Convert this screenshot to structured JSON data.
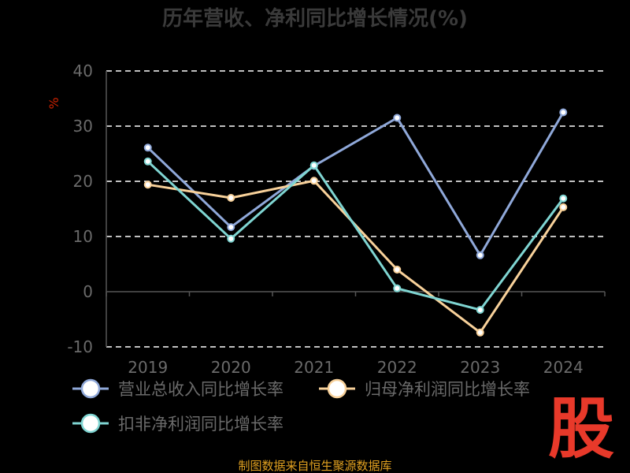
{
  "chart_data": {
    "type": "line",
    "title": "历年营收、净利同比增长情况(%)",
    "ylabel": "%",
    "xlabel": "",
    "categories": [
      "2019",
      "2020",
      "2021",
      "2022",
      "2023",
      "2024"
    ],
    "ylim": [
      -10,
      40
    ],
    "yticks": [
      40,
      30,
      20,
      10,
      0,
      -10
    ],
    "grid": true,
    "legend_position": "bottom",
    "series": [
      {
        "name": "营业总收入同比增长率",
        "values": [
          26.1,
          11.7,
          22.8,
          31.5,
          6.6,
          32.5
        ],
        "color": "#8fa8d9"
      },
      {
        "name": "归母净利润同比增长率",
        "values": [
          19.4,
          17.0,
          20.1,
          4.0,
          -7.4,
          15.3
        ],
        "color": "#f8d19a"
      },
      {
        "name": "扣非净利润同比增长率",
        "values": [
          23.6,
          9.6,
          22.9,
          0.6,
          -3.3,
          16.9
        ],
        "color": "#7fd5d2"
      }
    ]
  },
  "source": "制图数据来自恒生聚源数据库",
  "logo_text": "股",
  "colors": {
    "background": "#000000",
    "title": "#3a3a3a",
    "tick": "#6a6a6a",
    "grid": "#ffffff",
    "ylabel": "#cc2200",
    "source": "#e0a020",
    "logo": "#e8392a"
  }
}
